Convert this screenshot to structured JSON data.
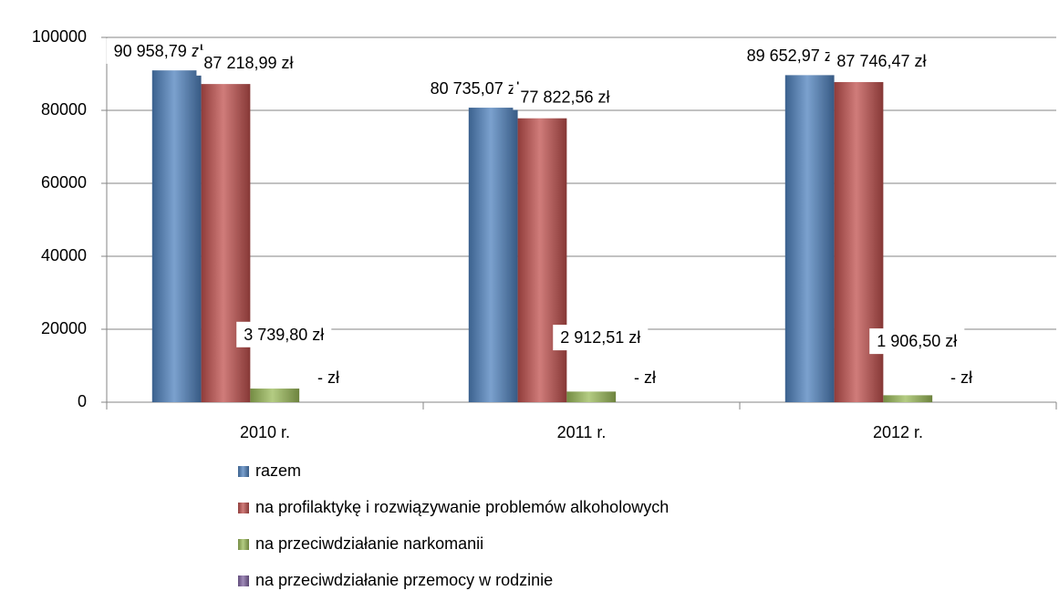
{
  "chart_data": {
    "type": "bar",
    "categories": [
      "2010 r.",
      "2011 r.",
      "2012 r."
    ],
    "series": [
      {
        "name": "razem",
        "color": "#4f81bd",
        "values": [
          90958.79,
          80735.07,
          89652.97
        ],
        "value_labels": [
          "90 958,79 zł",
          "80 735,07 zł",
          "89 652,97 zł"
        ]
      },
      {
        "name": "na profilaktykę i rozwiązywanie problemów alkoholowych",
        "color": "#c0504d",
        "values": [
          87218.99,
          77822.56,
          87746.47
        ],
        "value_labels": [
          "87 218,99 zł",
          "77 822,56 zł",
          "87 746,47 zł"
        ]
      },
      {
        "name": "na przeciwdziałanie narkomanii",
        "color": "#9bbb59",
        "values": [
          3739.8,
          2912.51,
          1906.5
        ],
        "value_labels": [
          "3 739,80 zł",
          "2 912,51 zł",
          "1 906,50 zł"
        ]
      },
      {
        "name": "na przeciwdziałanie przemocy w rodzinie",
        "color": "#8064a2",
        "values": [
          0,
          0,
          0
        ],
        "value_labels": [
          "-   zł",
          "-   zł",
          "-   zł"
        ]
      }
    ],
    "ylim": [
      0,
      100000
    ],
    "yticks": [
      0,
      20000,
      40000,
      60000,
      80000,
      100000
    ],
    "grid": true
  }
}
